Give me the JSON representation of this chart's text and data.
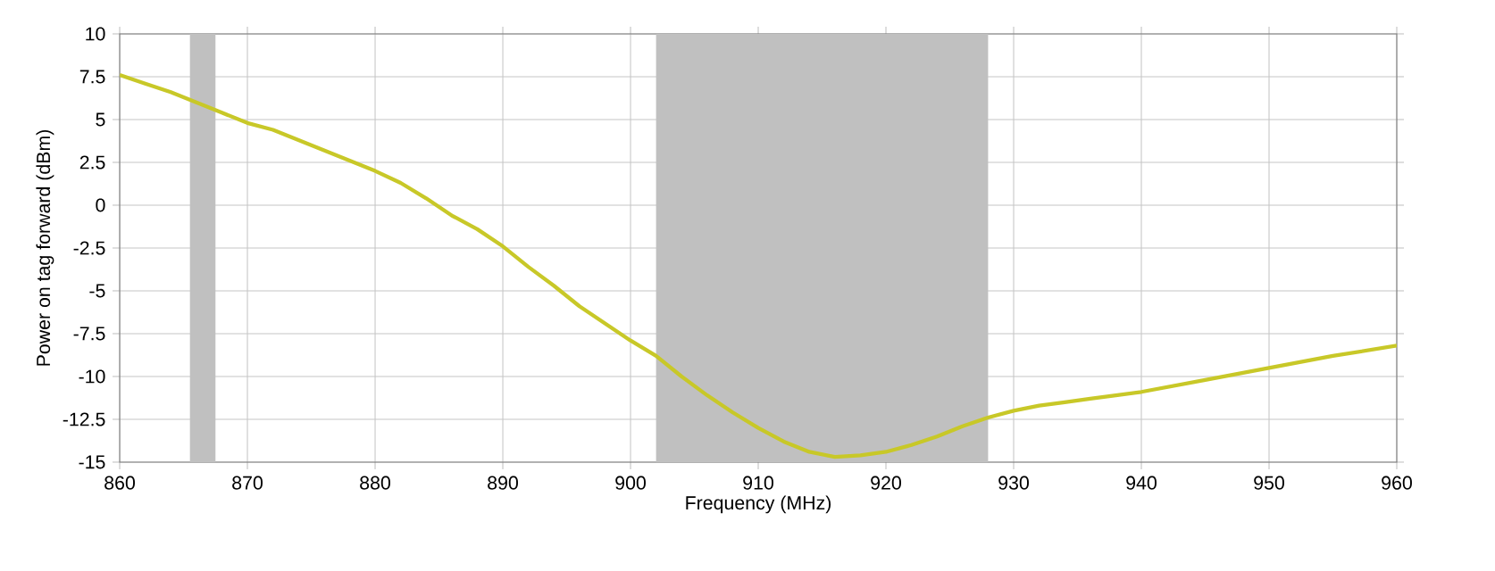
{
  "chart_data": {
    "type": "line",
    "xlabel": "Frequency (MHz)",
    "ylabel": "Power on tag forward (dBm)",
    "series": [
      {
        "color": "#c8c828",
        "x": [
          860,
          862,
          864,
          866,
          868,
          870,
          872,
          874,
          876,
          878,
          880,
          882,
          884,
          886,
          888,
          890,
          892,
          894,
          896,
          898,
          900,
          902,
          904,
          906,
          908,
          910,
          912,
          914,
          916,
          918,
          920,
          922,
          924,
          926,
          928,
          930,
          932,
          934,
          936,
          938,
          940,
          945,
          950,
          955,
          960
        ],
        "values": [
          7.6,
          7.1,
          6.6,
          6.0,
          5.4,
          4.8,
          4.4,
          3.8,
          3.2,
          2.6,
          2.0,
          1.3,
          0.4,
          -0.6,
          -1.4,
          -2.4,
          -3.6,
          -4.7,
          -5.9,
          -6.9,
          -7.9,
          -8.8,
          -10.0,
          -11.1,
          -12.1,
          -13.0,
          -13.8,
          -14.4,
          -14.7,
          -14.6,
          -14.4,
          -14.0,
          -13.5,
          -12.9,
          -12.4,
          -12.0,
          -11.7,
          -11.5,
          -11.3,
          -11.1,
          -10.9,
          -10.2,
          -9.5,
          -8.8,
          -8.2
        ]
      }
    ],
    "xlim": [
      860,
      960
    ],
    "ylim": [
      -15,
      10
    ],
    "xticks": [
      860,
      870,
      880,
      890,
      900,
      910,
      920,
      930,
      940,
      950,
      960
    ],
    "yticks": [
      -15,
      -12.5,
      -10,
      -7.5,
      -5,
      -2.5,
      0,
      2.5,
      5,
      7.5,
      10
    ],
    "bands": [
      {
        "axis": "x",
        "from": 865.5,
        "to": 867.5,
        "color": "#c0c0c0"
      },
      {
        "axis": "x",
        "from": 902,
        "to": 928,
        "color": "#c0c0c0"
      }
    ],
    "grid": true,
    "line_style": "solid",
    "marker": "none"
  }
}
